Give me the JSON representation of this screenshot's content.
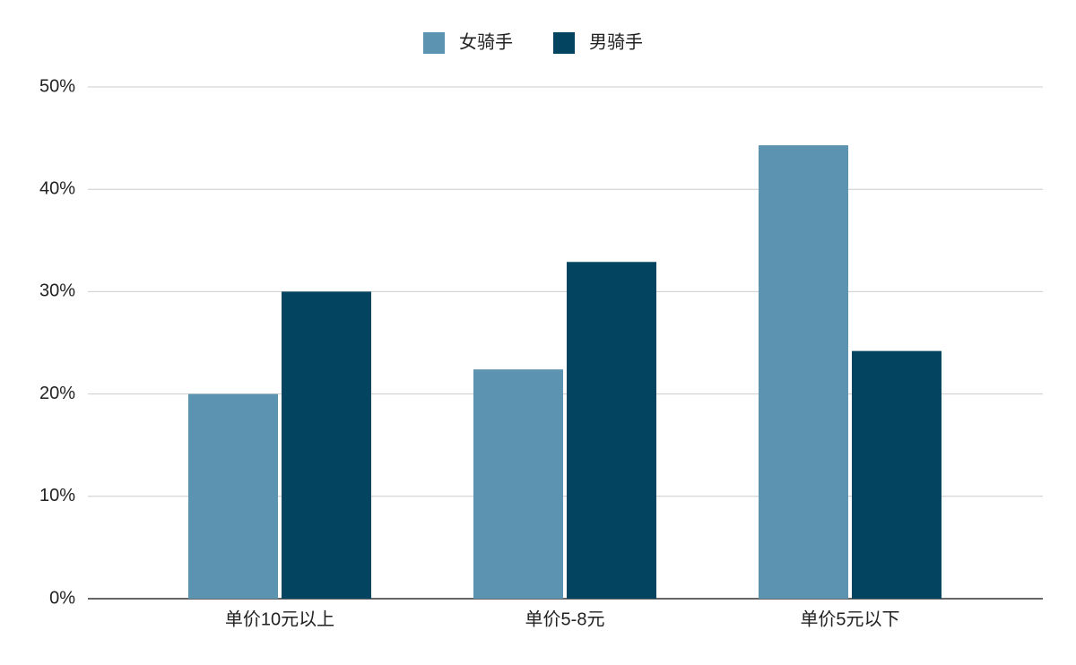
{
  "chart_data": {
    "type": "bar",
    "categories": [
      "单价10元以上",
      "单价5-8元",
      "单价5元以下"
    ],
    "series": [
      {
        "name": "女骑手",
        "color": "#5b93b0",
        "values": [
          20,
          22.4,
          44.3
        ]
      },
      {
        "name": "男骑手",
        "color": "#034561",
        "values": [
          30,
          32.9,
          24.2
        ]
      }
    ],
    "ylim": [
      0,
      50
    ],
    "yticks": [
      {
        "value": 0,
        "label": "0%"
      },
      {
        "value": 10,
        "label": "10%"
      },
      {
        "value": 20,
        "label": "20%"
      },
      {
        "value": 30,
        "label": "30%"
      },
      {
        "value": 40,
        "label": "40%"
      },
      {
        "value": 50,
        "label": "50%"
      }
    ],
    "grid": true,
    "legend": "top"
  }
}
